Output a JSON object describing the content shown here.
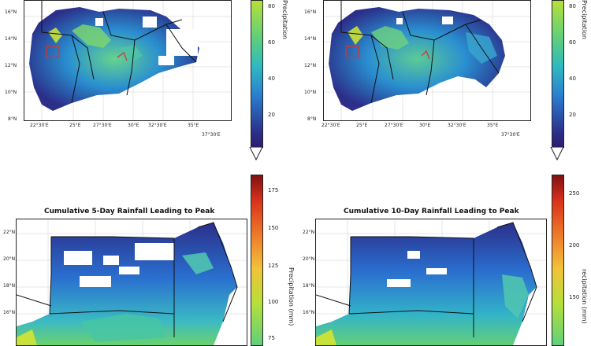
{
  "panels": [
    {
      "id": "top-left",
      "title": "",
      "lat_labels": [
        "16°N",
        "14°N",
        "12°N",
        "10°N",
        "8°N"
      ],
      "lon_labels": [
        "22°30'E",
        "25°E",
        "27°30'E",
        "30°E",
        "32°30'E",
        "35°E",
        "37°30'E"
      ]
    },
    {
      "id": "top-right",
      "title": "",
      "lat_labels": [
        "16°N",
        "14°N",
        "12°N",
        "10°N",
        "8°N"
      ],
      "lon_labels": [
        "22°30'E",
        "25°E",
        "27°30'E",
        "30°E",
        "32°30'E",
        "35°E",
        "37°30'E"
      ]
    },
    {
      "id": "bottom-left",
      "title": "Cumulative 5-Day Rainfall Leading to Peak",
      "lat_labels": [
        "22°N",
        "20°N",
        "18°N",
        "16°N"
      ],
      "lon_labels": []
    },
    {
      "id": "bottom-right",
      "title": "Cumulative 10-Day Rainfall Leading to Peak",
      "lat_labels": [
        "22°N",
        "20°N",
        "18°N",
        "16°N"
      ],
      "lon_labels": []
    }
  ],
  "colorbars": [
    {
      "id": "cbar-top-left",
      "label": "Precipitation",
      "ticks": [
        "80",
        "60",
        "40",
        "20"
      ]
    },
    {
      "id": "cbar-top-right",
      "label": "Precipitation",
      "ticks": [
        "80",
        "60",
        "40",
        "20"
      ]
    },
    {
      "id": "cbar-bottom-left",
      "label": "Precipitation (mm)",
      "ticks": [
        "175",
        "150",
        "125",
        "100",
        "75"
      ]
    },
    {
      "id": "cbar-bottom-right",
      "label": "recipitation (mm)",
      "ticks": [
        "250",
        "200",
        "150"
      ]
    }
  ],
  "colors": {
    "ocean": "#ffffff",
    "border": "#000000",
    "box": "#e0302a",
    "low": "#2b2f8a",
    "mid": "#2a8fd0",
    "high": "#3ec7a0",
    "peak": "#a9dd3a"
  }
}
